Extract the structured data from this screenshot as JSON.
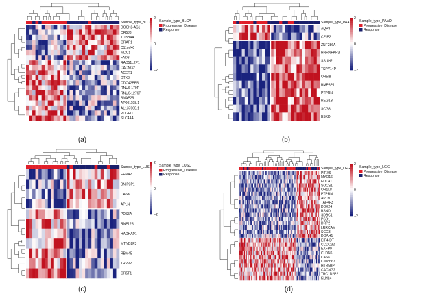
{
  "panels": [
    {
      "id": "a",
      "panel_label": "(a)",
      "annotation_label": "Sample_type_BLCA",
      "legend_title": "Sample_type_BLCA",
      "legend_items": [
        {
          "label": "Progressive_Disease",
          "color": "#e0202a"
        },
        {
          "label": "Response",
          "color": "#1a1f6b"
        }
      ],
      "scale_ticks": [
        "2",
        "0",
        "−2"
      ],
      "genes": [
        "DOCK8-AS1",
        "OR5J8",
        "TUBB4A",
        "GRAP1",
        "C11orf40",
        "MDC1",
        "FAD3",
        "RAD51L2P1",
        "CACNG2",
        "ACER1",
        "DTX3",
        "CDC42EP5",
        "RNU6-179P",
        "RNU6-1276P",
        "SNAP25",
        "AP001198.1",
        "AL137000.1",
        "PDGFD",
        "SLC4A4"
      ],
      "n_cols": 30,
      "col_split": 13,
      "row_split": 7
    },
    {
      "id": "b",
      "panel_label": "(b)",
      "annotation_label": "Sample_type_PAAD",
      "legend_title": "Sample_type_PAAD",
      "legend_items": [
        {
          "label": "Progressive_Disease",
          "color": "#e0202a"
        },
        {
          "label": "Response",
          "color": "#1a1f6b"
        }
      ],
      "scale_ticks": [
        "2",
        "0",
        "−2"
      ],
      "genes": [
        "AQP3",
        "CEIP2",
        "ZNF286A",
        "HNRNPKP3",
        "SSUH2",
        "TSPY14P",
        "OR5I8",
        "BMP3P1",
        "PTPRN",
        "REG1B",
        "SCG3",
        "BSKD"
      ],
      "n_cols": 30,
      "col_split": 13,
      "row_split": 2
    },
    {
      "id": "c",
      "panel_label": "(c)",
      "annotation_label": "Sample_type_LUSC",
      "legend_title": "Sample_type_LUSC",
      "legend_items": [
        {
          "label": "Progressive_Disease",
          "color": "#e0202a"
        },
        {
          "label": "Response",
          "color": "#1a1f6b"
        }
      ],
      "scale_ticks": [
        "2",
        "0",
        "−2"
      ],
      "genes": [
        "EFNA2",
        "BNIP3P1",
        "CASK",
        "APLN",
        "PDS5A",
        "RNF125",
        "HADHAP1",
        "MTND2P3",
        "RBM45",
        "TRPV2",
        "OR5T1"
      ],
      "n_cols": 30,
      "col_split": 13,
      "row_split": 4
    },
    {
      "id": "d",
      "panel_label": "(d)",
      "annotation_label": "Sample_type_LGG",
      "legend_title": "Sample_type_LGG",
      "legend_items": [
        {
          "label": "Progressive_Disease",
          "color": "#e0202a"
        },
        {
          "label": "Response",
          "color": "#1a1f6b"
        }
      ],
      "scale_ticks": [
        "2",
        "0",
        "−2"
      ],
      "genes": [
        "PIRX6",
        "MYO16",
        "EOLA1",
        "SOCS1",
        "OR1L8",
        "PTPRN",
        "APLN",
        "TAF4F3",
        "DDX24",
        "BSND",
        "SDBC1",
        "PSD1",
        "DRP2",
        "LRRCAM",
        "SCG3",
        "DOAH1",
        "EIF4-DT",
        "CCDC32",
        "EXFP9",
        "CLDN6",
        "CASK",
        "C10orf67",
        "HTR5BP",
        "CACNG2",
        "TBC1D2P2",
        "KLHL4"
      ],
      "n_cols": 90,
      "col_split": 64,
      "row_split": 16
    }
  ],
  "colors": {
    "high": "#c1121f",
    "mid": "#ffffff",
    "low": "#1a237e",
    "annot_pd": "#e0202a",
    "annot_resp": "#1a1f6b",
    "dendrogram": "#333333"
  }
}
